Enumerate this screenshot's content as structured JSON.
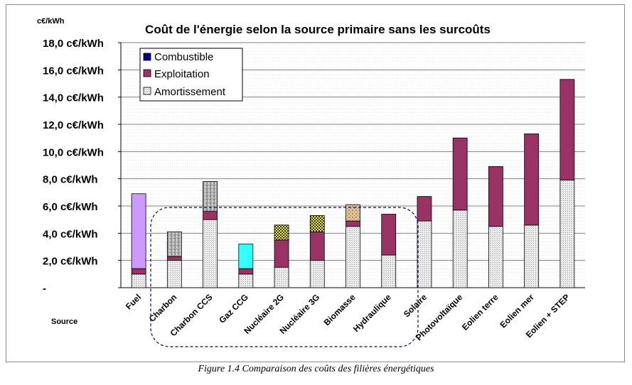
{
  "caption": "Figure 1.4 Comparaison des coûts des filières énergétiques",
  "chart_data": {
    "type": "bar",
    "stacked": true,
    "title": "Coût de l'énergie selon la source primaire sans les surcoûts",
    "ylabel": "c€/kWh",
    "xlabel": "Source",
    "ylim": [
      0,
      18
    ],
    "ytick_values": [
      0,
      2,
      4,
      6,
      8,
      10,
      12,
      14,
      16,
      18
    ],
    "ytick_labels": [
      "-",
      "2,0    c€/kWh",
      "4,0    c€/kWh",
      "6,0    c€/kWh",
      "8,0    c€/kWh",
      "10,0  c€/kWh",
      "12,0  c€/kWh",
      "14,0  c€/kWh",
      "16,0  c€/kWh",
      "18,0  c€/kWh"
    ],
    "grid": true,
    "legend_position": "top-left",
    "categories": [
      "Fuel",
      "Charbon",
      "Charbon CCS",
      "Gaz CCG",
      "Nucléaire 2G",
      "Nucléaire 3G",
      "Biomasse",
      "Hydraulique",
      "Solaire",
      "Photovoltaïque",
      "Eolien terre",
      "Eolien mer",
      "Eolien + STEP"
    ],
    "series": [
      {
        "name": "Amortissement",
        "color": "#e6e6e6",
        "values": [
          1.0,
          2.0,
          5.0,
          1.0,
          1.5,
          2.0,
          4.5,
          2.4,
          4.9,
          5.7,
          4.5,
          4.6,
          7.9
        ]
      },
      {
        "name": "Exploitation",
        "color": "#993366",
        "values": [
          0.4,
          0.3,
          0.6,
          0.4,
          2.0,
          2.1,
          0.4,
          3.0,
          1.8,
          5.3,
          4.4,
          6.7,
          7.4
        ]
      },
      {
        "name": "Combustible",
        "color": "#000080",
        "values": [
          5.5,
          1.8,
          2.2,
          1.8,
          1.1,
          1.2,
          1.2,
          0,
          0,
          0,
          0,
          0,
          0
        ]
      }
    ],
    "combustible_fill_by_category": [
      "#cc99ff",
      "#b4b4b4",
      "#b4b4b4",
      "#33ffff",
      "#d4d44a",
      "#d4d44a",
      "#d8b894",
      "#000080",
      "#000080",
      "#000080",
      "#000080",
      "#000080",
      "#000080"
    ]
  }
}
